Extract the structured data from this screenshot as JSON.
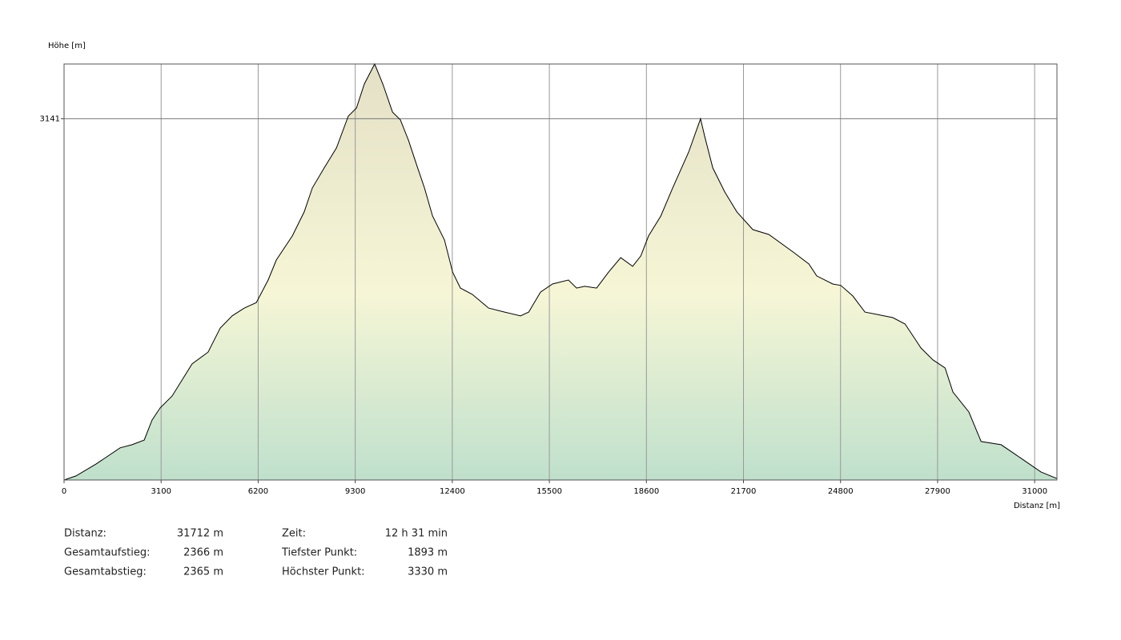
{
  "chart_data": {
    "type": "area",
    "ylabel": "Höhe [m]",
    "xlabel": "Distanz [m]",
    "xlim": [
      0,
      31712
    ],
    "ylim": [
      1893,
      3330
    ],
    "xticks": [
      0,
      3100,
      6200,
      9300,
      12400,
      15500,
      18600,
      21700,
      24800,
      27900,
      31000
    ],
    "yticks": [
      3141
    ],
    "grid": true,
    "x": [
      0,
      380,
      1020,
      1790,
      2170,
      2560,
      2810,
      3070,
      3450,
      4090,
      4600,
      4990,
      5370,
      5760,
      6140,
      6520,
      6780,
      7290,
      7670,
      7930,
      8310,
      8700,
      9080,
      9340,
      9590,
      9920,
      10180,
      10490,
      10740,
      11000,
      11250,
      11510,
      11770,
      12150,
      12410,
      12660,
      13040,
      13560,
      14070,
      14580,
      14840,
      15220,
      15600,
      16110,
      16370,
      16630,
      17010,
      17390,
      17780,
      18160,
      18420,
      18670,
      19060,
      19440,
      19950,
      20330,
      20460,
      20720,
      21100,
      21490,
      22000,
      22510,
      23280,
      23790,
      24040,
      24550,
      24810,
      25190,
      25580,
      25960,
      26470,
      26860,
      27370,
      27750,
      28140,
      28390,
      28900,
      29290,
      29930,
      30570,
      31200,
      31712
    ],
    "series": [
      {
        "name": "Höhe",
        "color": "#000000",
        "fill_top": "#e4e0c6",
        "fill_mid": "#f6f6d6",
        "fill_bottom": "#bfe0cc",
        "values": [
          1893,
          1907,
          1948,
          2004,
          2015,
          2031,
          2100,
          2142,
          2183,
          2294,
          2335,
          2418,
          2460,
          2487,
          2506,
          2584,
          2653,
          2736,
          2819,
          2902,
          2971,
          3040,
          3150,
          3178,
          3261,
          3330,
          3261,
          3164,
          3137,
          3067,
          2985,
          2902,
          2805,
          2722,
          2611,
          2556,
          2534,
          2487,
          2473,
          2460,
          2473,
          2542,
          2570,
          2584,
          2556,
          2562,
          2556,
          2611,
          2661,
          2631,
          2667,
          2736,
          2805,
          2902,
          3026,
          3141,
          3081,
          2971,
          2888,
          2819,
          2758,
          2741,
          2681,
          2639,
          2598,
          2570,
          2565,
          2529,
          2473,
          2465,
          2454,
          2432,
          2349,
          2308,
          2280,
          2197,
          2128,
          2026,
          2015,
          1968,
          1921,
          1898
        ]
      }
    ]
  },
  "stats": {
    "left": [
      {
        "label": "Distanz:",
        "value": "31712 m"
      },
      {
        "label": "Gesamtaufstieg:",
        "value": "2366 m"
      },
      {
        "label": "Gesamtabstieg:",
        "value": "2365 m"
      }
    ],
    "right": [
      {
        "label": "Zeit:",
        "value": "12 h 31 min"
      },
      {
        "label": "Tiefster Punkt:",
        "value": "1893 m"
      },
      {
        "label": "Höchster Punkt:",
        "value": "3330 m"
      }
    ]
  }
}
